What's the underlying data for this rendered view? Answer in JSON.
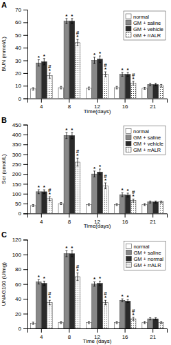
{
  "chart_data": [
    {
      "type": "bar",
      "title": "A",
      "x_label": "Time(days)",
      "y_label": "BUN (mmol/L)",
      "categories": [
        "4",
        "8",
        "12",
        "16",
        "21"
      ],
      "ylim": [
        0,
        70
      ],
      "yticks": [
        0,
        10,
        20,
        30,
        40,
        50,
        60,
        70
      ],
      "grid": false,
      "legend": "upper right",
      "series": [
        {
          "name": "normal",
          "color": "#ffffff",
          "values": [
            7.5,
            8.5,
            8.0,
            8.5,
            8.0
          ],
          "errors": [
            1.0,
            1.0,
            1.0,
            1.0,
            0.8
          ]
        },
        {
          "name": "GM + saline",
          "color": "#888888",
          "values": [
            28,
            61,
            30,
            19,
            11
          ],
          "errors": [
            2.5,
            2.0,
            2.5,
            1.5,
            1.0
          ],
          "annotations": [
            [
              "*"
            ],
            [
              "*"
            ],
            [
              "*"
            ],
            [
              "*"
            ],
            null
          ]
        },
        {
          "name": "GM + vehicle",
          "color": "#2a2a2a",
          "values": [
            29,
            61,
            31,
            19,
            11
          ],
          "errors": [
            2.5,
            2.0,
            2.5,
            1.5,
            1.0
          ],
          "annotations": [
            [
              "*"
            ],
            [
              "*"
            ],
            [
              "*"
            ],
            [
              "*"
            ],
            null
          ]
        },
        {
          "name": "GM + rrALR",
          "color": "#ffffff",
          "values": [
            18,
            44,
            19,
            12,
            10
          ],
          "errors": [
            2.0,
            2.5,
            2.0,
            1.5,
            1.0
          ],
          "annotations": [
            [
              "*",
              "#"
            ],
            [
              "*",
              "#"
            ],
            [
              "*",
              "#"
            ],
            [
              "*",
              "#"
            ],
            null
          ]
        }
      ]
    },
    {
      "type": "bar",
      "title": "B",
      "x_label": "Time(days)",
      "y_label": "Scr (umol/L)",
      "categories": [
        "4",
        "8",
        "12",
        "16",
        "21"
      ],
      "ylim": [
        0,
        450
      ],
      "yticks": [
        0,
        50,
        100,
        150,
        200,
        250,
        300,
        350,
        400,
        450
      ],
      "grid": false,
      "legend": "upper right",
      "series": [
        {
          "name": "normal",
          "color": "#ffffff",
          "values": [
            40,
            50,
            45,
            45,
            45
          ],
          "errors": [
            5,
            5,
            5,
            5,
            5
          ]
        },
        {
          "name": "GM + saline",
          "color": "#888888",
          "values": [
            110,
            395,
            200,
            95,
            58
          ],
          "errors": [
            10,
            15,
            15,
            10,
            5
          ],
          "annotations": [
            [
              "*"
            ],
            [
              "*"
            ],
            [
              "*"
            ],
            [
              "*"
            ],
            null
          ]
        },
        {
          "name": "GM + vehicle",
          "color": "#2a2a2a",
          "values": [
            110,
            395,
            210,
            93,
            58
          ],
          "errors": [
            10,
            15,
            15,
            10,
            5
          ],
          "annotations": [
            [
              "*"
            ],
            [
              "*"
            ],
            [
              "*"
            ],
            [
              "*"
            ],
            null
          ]
        },
        {
          "name": "GM + rrALR",
          "color": "#ffffff",
          "values": [
            75,
            260,
            140,
            65,
            58
          ],
          "errors": [
            10,
            20,
            15,
            8,
            5
          ],
          "annotations": [
            [
              "*",
              "#"
            ],
            [
              "*",
              "#"
            ],
            [
              "*",
              "#"
            ],
            [
              "*",
              "#"
            ],
            null
          ]
        }
      ]
    },
    {
      "type": "bar",
      "title": "C",
      "x_label": "Time (days)",
      "y_label": "UNAG100 (U/mg)",
      "categories": [
        "4",
        "8",
        "12",
        "16",
        "21"
      ],
      "ylim": [
        0,
        120
      ],
      "yticks": [
        0,
        20,
        40,
        60,
        80,
        100,
        120
      ],
      "grid": false,
      "legend": "upper right",
      "series": [
        {
          "name": "normal",
          "color": "#ffffff",
          "values": [
            7,
            8,
            8,
            8,
            8
          ],
          "errors": [
            1.5,
            1.5,
            1.5,
            1.5,
            1.5
          ]
        },
        {
          "name": "GM + saline",
          "color": "#888888",
          "values": [
            63,
            101,
            60,
            38,
            13
          ],
          "errors": [
            3,
            4,
            3,
            2,
            1.5
          ],
          "annotations": [
            [
              "*"
            ],
            [
              "*"
            ],
            [
              "*"
            ],
            [
              "*"
            ],
            null
          ]
        },
        {
          "name": "GM + normal",
          "color": "#2a2a2a",
          "values": [
            61,
            101,
            61,
            37,
            13
          ],
          "errors": [
            3,
            4,
            3,
            2,
            1.5
          ],
          "annotations": [
            [
              "*"
            ],
            [
              "*"
            ],
            [
              "*"
            ],
            [
              "*"
            ],
            null
          ]
        },
        {
          "name": "GM + rrALR",
          "color": "#ffffff",
          "values": [
            35,
            70,
            35,
            13,
            8
          ],
          "errors": [
            3,
            5,
            3,
            2,
            1.5
          ],
          "annotations": [
            [
              "*",
              "#"
            ],
            [
              "*",
              "#"
            ],
            [
              "*",
              "#"
            ],
            [
              "*",
              "#"
            ],
            null
          ]
        }
      ]
    }
  ]
}
